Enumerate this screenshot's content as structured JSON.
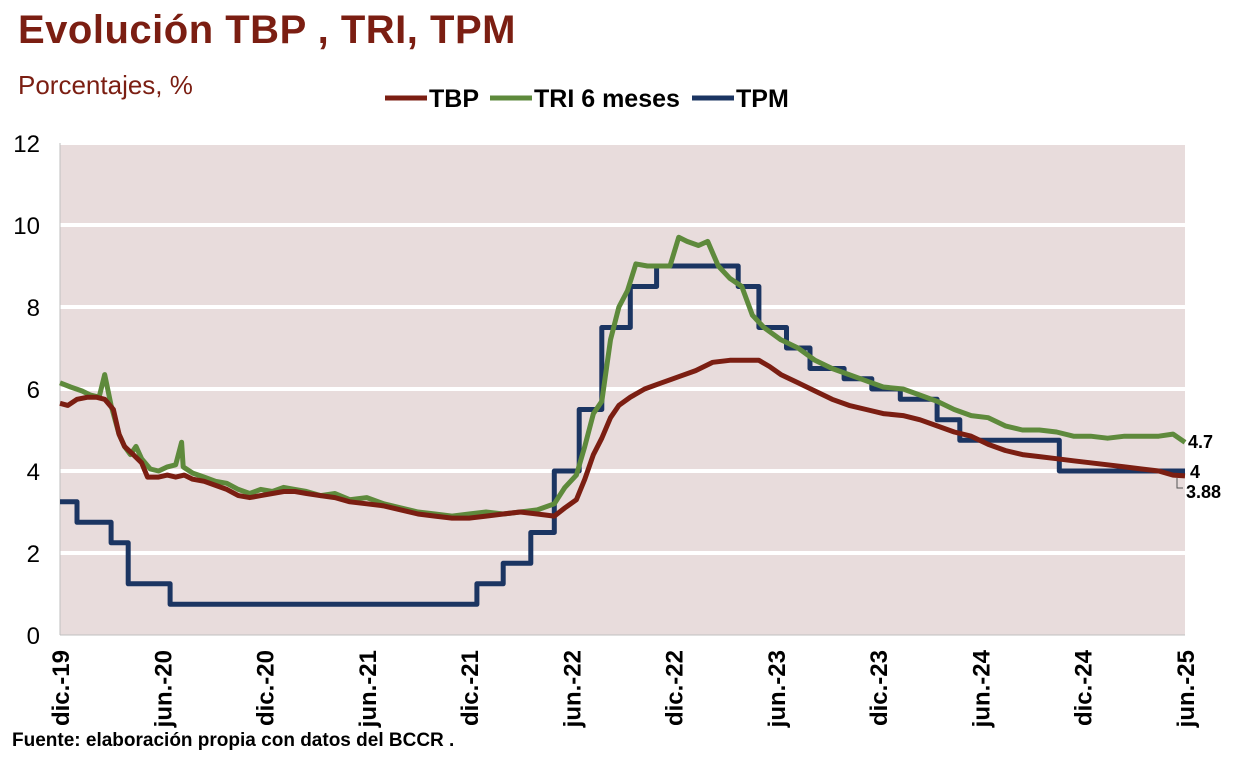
{
  "title": "Evolución  TBP , TRI, TPM",
  "subtitle": "Porcentajes, %",
  "source": "Fuente: elaboración propia con datos del BCCR .",
  "colors": {
    "background": "#e8dcdc",
    "grid": "#ffffff",
    "tbp": "#7b1e12",
    "tri": "#5e8a3c",
    "tpm": "#1b3562",
    "title": "#7b1e12"
  },
  "chart_data": {
    "type": "line",
    "x_type": "date",
    "xlim": [
      "2019-12",
      "2025-06"
    ],
    "ylim": [
      0,
      12
    ],
    "y_ticks": [
      0,
      2,
      4,
      6,
      8,
      10,
      12
    ],
    "x_ticks": [
      "dic.-19",
      "jun.-20",
      "dic.-20",
      "jun.-21",
      "dic.-21",
      "jun.-22",
      "dic.-22",
      "jun.-23",
      "dic.-23",
      "jun.-24",
      "dic.-24",
      "jun.-25"
    ],
    "grid": true,
    "legend_position": "top-center",
    "end_labels": [
      {
        "series": "TRI 6 meses",
        "text": "4.7",
        "value": 4.7
      },
      {
        "series": "TPM",
        "text": "4",
        "value": 4
      },
      {
        "series": "TBP",
        "text": "3.88",
        "value": 3.88
      }
    ],
    "series": [
      {
        "name": "TBP",
        "color": "#7b1e12",
        "step": false,
        "points": [
          [
            "2019-12-01",
            5.65
          ],
          [
            "2019-12-15",
            5.6
          ],
          [
            "2020-01-01",
            5.75
          ],
          [
            "2020-01-20",
            5.8
          ],
          [
            "2020-02-05",
            5.8
          ],
          [
            "2020-02-20",
            5.75
          ],
          [
            "2020-03-05",
            5.5
          ],
          [
            "2020-03-15",
            4.9
          ],
          [
            "2020-03-25",
            4.6
          ],
          [
            "2020-04-10",
            4.4
          ],
          [
            "2020-04-25",
            4.2
          ],
          [
            "2020-05-05",
            3.85
          ],
          [
            "2020-05-25",
            3.85
          ],
          [
            "2020-06-10",
            3.9
          ],
          [
            "2020-06-25",
            3.85
          ],
          [
            "2020-07-10",
            3.9
          ],
          [
            "2020-07-25",
            3.8
          ],
          [
            "2020-08-15",
            3.75
          ],
          [
            "2020-09-05",
            3.65
          ],
          [
            "2020-09-25",
            3.55
          ],
          [
            "2020-10-15",
            3.4
          ],
          [
            "2020-11-05",
            3.35
          ],
          [
            "2020-11-25",
            3.4
          ],
          [
            "2020-12-15",
            3.45
          ],
          [
            "2021-01-05",
            3.5
          ],
          [
            "2021-01-25",
            3.5
          ],
          [
            "2021-02-15",
            3.45
          ],
          [
            "2021-03-10",
            3.4
          ],
          [
            "2021-04-05",
            3.35
          ],
          [
            "2021-05-01",
            3.25
          ],
          [
            "2021-06-01",
            3.2
          ],
          [
            "2021-07-01",
            3.15
          ],
          [
            "2021-08-01",
            3.05
          ],
          [
            "2021-09-01",
            2.95
          ],
          [
            "2021-10-01",
            2.9
          ],
          [
            "2021-11-01",
            2.85
          ],
          [
            "2021-12-01",
            2.85
          ],
          [
            "2022-01-01",
            2.9
          ],
          [
            "2022-02-01",
            2.95
          ],
          [
            "2022-03-01",
            3.0
          ],
          [
            "2022-04-01",
            2.95
          ],
          [
            "2022-05-01",
            2.9
          ],
          [
            "2022-05-20",
            3.1
          ],
          [
            "2022-06-10",
            3.3
          ],
          [
            "2022-06-25",
            3.8
          ],
          [
            "2022-07-10",
            4.4
          ],
          [
            "2022-07-25",
            4.8
          ],
          [
            "2022-08-10",
            5.3
          ],
          [
            "2022-08-25",
            5.6
          ],
          [
            "2022-09-15",
            5.8
          ],
          [
            "2022-10-10",
            6.0
          ],
          [
            "2022-11-10",
            6.15
          ],
          [
            "2022-12-10",
            6.3
          ],
          [
            "2023-01-10",
            6.45
          ],
          [
            "2023-02-10",
            6.65
          ],
          [
            "2023-03-10",
            6.7
          ],
          [
            "2023-04-10",
            6.7
          ],
          [
            "2023-05-01",
            6.7
          ],
          [
            "2023-05-20",
            6.55
          ],
          [
            "2023-06-10",
            6.35
          ],
          [
            "2023-07-10",
            6.15
          ],
          [
            "2023-08-10",
            5.95
          ],
          [
            "2023-09-10",
            5.75
          ],
          [
            "2023-10-10",
            5.6
          ],
          [
            "2023-11-10",
            5.5
          ],
          [
            "2023-12-10",
            5.4
          ],
          [
            "2024-01-15",
            5.35
          ],
          [
            "2024-02-15",
            5.25
          ],
          [
            "2024-03-15",
            5.1
          ],
          [
            "2024-04-15",
            4.95
          ],
          [
            "2024-05-15",
            4.85
          ],
          [
            "2024-06-15",
            4.65
          ],
          [
            "2024-07-15",
            4.5
          ],
          [
            "2024-08-15",
            4.4
          ],
          [
            "2024-09-15",
            4.35
          ],
          [
            "2024-10-15",
            4.3
          ],
          [
            "2024-11-15",
            4.25
          ],
          [
            "2024-12-15",
            4.2
          ],
          [
            "2025-01-15",
            4.15
          ],
          [
            "2025-02-15",
            4.1
          ],
          [
            "2025-03-15",
            4.05
          ],
          [
            "2025-04-15",
            4.0
          ],
          [
            "2025-05-10",
            3.9
          ],
          [
            "2025-06-01",
            3.88
          ]
        ]
      },
      {
        "name": "TRI 6 meses",
        "color": "#5e8a3c",
        "step": false,
        "points": [
          [
            "2019-12-01",
            6.15
          ],
          [
            "2019-12-20",
            6.05
          ],
          [
            "2020-01-10",
            5.95
          ],
          [
            "2020-01-25",
            5.85
          ],
          [
            "2020-02-10",
            5.8
          ],
          [
            "2020-02-20",
            6.35
          ],
          [
            "2020-03-01",
            5.6
          ],
          [
            "2020-03-15",
            4.9
          ],
          [
            "2020-03-25",
            4.6
          ],
          [
            "2020-04-05",
            4.4
          ],
          [
            "2020-04-15",
            4.6
          ],
          [
            "2020-04-25",
            4.3
          ],
          [
            "2020-05-10",
            4.05
          ],
          [
            "2020-05-25",
            4.0
          ],
          [
            "2020-06-10",
            4.1
          ],
          [
            "2020-06-25",
            4.15
          ],
          [
            "2020-07-05",
            4.7
          ],
          [
            "2020-07-08",
            4.1
          ],
          [
            "2020-07-25",
            3.95
          ],
          [
            "2020-08-15",
            3.85
          ],
          [
            "2020-09-05",
            3.75
          ],
          [
            "2020-09-25",
            3.7
          ],
          [
            "2020-10-15",
            3.55
          ],
          [
            "2020-11-05",
            3.45
          ],
          [
            "2020-11-25",
            3.55
          ],
          [
            "2020-12-15",
            3.5
          ],
          [
            "2021-01-05",
            3.6
          ],
          [
            "2021-01-25",
            3.55
          ],
          [
            "2021-02-15",
            3.5
          ],
          [
            "2021-03-10",
            3.4
          ],
          [
            "2021-04-05",
            3.45
          ],
          [
            "2021-05-01",
            3.3
          ],
          [
            "2021-06-01",
            3.35
          ],
          [
            "2021-07-01",
            3.2
          ],
          [
            "2021-08-01",
            3.1
          ],
          [
            "2021-09-01",
            3.0
          ],
          [
            "2021-10-01",
            2.95
          ],
          [
            "2021-11-01",
            2.9
          ],
          [
            "2021-12-01",
            2.95
          ],
          [
            "2022-01-01",
            3.0
          ],
          [
            "2022-02-01",
            2.95
          ],
          [
            "2022-03-01",
            3.0
          ],
          [
            "2022-04-01",
            3.05
          ],
          [
            "2022-05-01",
            3.2
          ],
          [
            "2022-05-20",
            3.6
          ],
          [
            "2022-06-10",
            3.9
          ],
          [
            "2022-06-25",
            4.6
          ],
          [
            "2022-07-10",
            5.4
          ],
          [
            "2022-07-25",
            5.7
          ],
          [
            "2022-08-10",
            7.2
          ],
          [
            "2022-08-25",
            8.0
          ],
          [
            "2022-09-10",
            8.4
          ],
          [
            "2022-09-25",
            9.05
          ],
          [
            "2022-10-15",
            9.0
          ],
          [
            "2022-11-10",
            9.0
          ],
          [
            "2022-11-25",
            9.0
          ],
          [
            "2022-12-10",
            9.7
          ],
          [
            "2022-12-25",
            9.6
          ],
          [
            "2023-01-15",
            9.5
          ],
          [
            "2023-02-01",
            9.6
          ],
          [
            "2023-02-20",
            9.0
          ],
          [
            "2023-03-10",
            8.7
          ],
          [
            "2023-04-01",
            8.5
          ],
          [
            "2023-04-20",
            7.8
          ],
          [
            "2023-05-10",
            7.5
          ],
          [
            "2023-06-10",
            7.2
          ],
          [
            "2023-07-10",
            7.0
          ],
          [
            "2023-08-10",
            6.7
          ],
          [
            "2023-09-10",
            6.5
          ],
          [
            "2023-10-10",
            6.35
          ],
          [
            "2023-11-10",
            6.2
          ],
          [
            "2023-12-10",
            6.05
          ],
          [
            "2024-01-15",
            6.0
          ],
          [
            "2024-02-15",
            5.85
          ],
          [
            "2024-03-15",
            5.7
          ],
          [
            "2024-04-15",
            5.5
          ],
          [
            "2024-05-15",
            5.35
          ],
          [
            "2024-06-15",
            5.3
          ],
          [
            "2024-07-15",
            5.1
          ],
          [
            "2024-08-15",
            5.0
          ],
          [
            "2024-09-15",
            5.0
          ],
          [
            "2024-10-15",
            4.95
          ],
          [
            "2024-11-15",
            4.85
          ],
          [
            "2024-12-15",
            4.85
          ],
          [
            "2025-01-15",
            4.8
          ],
          [
            "2025-02-15",
            4.85
          ],
          [
            "2025-03-15",
            4.85
          ],
          [
            "2025-04-15",
            4.85
          ],
          [
            "2025-05-10",
            4.9
          ],
          [
            "2025-06-01",
            4.7
          ]
        ]
      },
      {
        "name": "TPM",
        "color": "#1b3562",
        "step": true,
        "points": [
          [
            "2019-12-01",
            3.25
          ],
          [
            "2020-01-01",
            2.75
          ],
          [
            "2020-03-01",
            2.25
          ],
          [
            "2020-04-01",
            1.25
          ],
          [
            "2020-06-15",
            0.75
          ],
          [
            "2021-12-15",
            1.25
          ],
          [
            "2022-02-01",
            1.75
          ],
          [
            "2022-03-20",
            2.5
          ],
          [
            "2022-05-01",
            4.0
          ],
          [
            "2022-06-15",
            5.5
          ],
          [
            "2022-07-25",
            7.5
          ],
          [
            "2022-09-15",
            8.5
          ],
          [
            "2022-11-01",
            9.0
          ],
          [
            "2023-03-25",
            8.5
          ],
          [
            "2023-05-01",
            7.5
          ],
          [
            "2023-06-20",
            7.0
          ],
          [
            "2023-08-01",
            6.5
          ],
          [
            "2023-10-01",
            6.25
          ],
          [
            "2023-11-20",
            6.0
          ],
          [
            "2024-01-10",
            5.75
          ],
          [
            "2024-03-15",
            5.25
          ],
          [
            "2024-04-25",
            4.75
          ],
          [
            "2024-10-20",
            4.0
          ],
          [
            "2025-06-01",
            4.0
          ]
        ]
      }
    ]
  }
}
